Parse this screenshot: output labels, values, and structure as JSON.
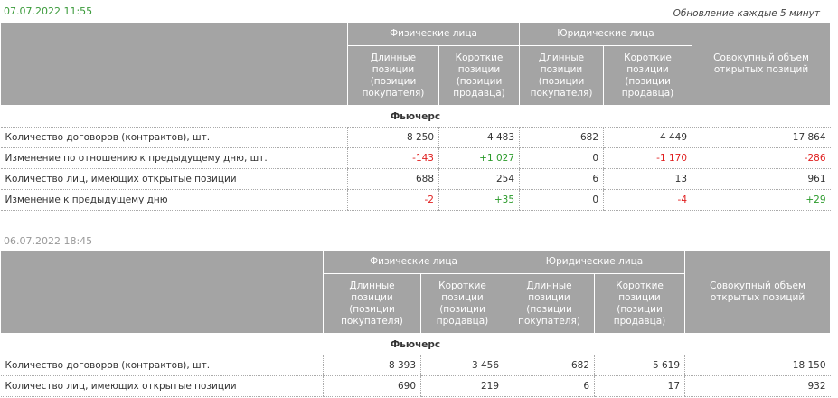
{
  "header": {
    "update_note": "Обновление каждые 5 минут"
  },
  "tables": [
    {
      "timestamp": "07.07.2022 11:55",
      "group_headers": [
        "Физические лица",
        "Юридические лица"
      ],
      "sub_headers": [
        "Длинные позиции (позиции покупателя)",
        "Короткие позиции (позиции продавца)",
        "Длинные позиции (позиции покупателя)",
        "Короткие позиции (позиции продавца)"
      ],
      "total_header": "Совокупный объем открытых позиций",
      "section": "Фьючерс",
      "rows": [
        {
          "label": "Количество договоров (контрактов), шт.",
          "values": [
            "8 250",
            "4 483",
            "682",
            "4 449",
            "17 864"
          ]
        },
        {
          "label": "Изменение по отношению к предыдущему дню, шт.",
          "values": [
            "-143",
            "+1 027",
            "0",
            "-1 170",
            "-286"
          ]
        },
        {
          "label": "Количество лиц, имеющих открытые позиции",
          "values": [
            "688",
            "254",
            "6",
            "13",
            "961"
          ]
        },
        {
          "label": "Изменение к предыдущему дню",
          "values": [
            "-2",
            "+35",
            "0",
            "-4",
            "+29"
          ]
        }
      ]
    },
    {
      "timestamp": "06.07.2022 18:45",
      "group_headers": [
        "Физические лица",
        "Юридические лица"
      ],
      "sub_headers": [
        "Длинные позиции (позиции покупателя)",
        "Короткие позиции (позиции продавца)",
        "Длинные позиции (позиции покупателя)",
        "Короткие позиции (позиции продавца)"
      ],
      "total_header": "Совокупный объем открытых позиций",
      "section": "Фьючерс",
      "rows": [
        {
          "label": "Количество договоров (контрактов), шт.",
          "values": [
            "8 393",
            "3 456",
            "682",
            "5 619",
            "18 150"
          ]
        },
        {
          "label": "Количество лиц, имеющих открытые позиции",
          "values": [
            "690",
            "219",
            "6",
            "17",
            "932"
          ]
        }
      ]
    }
  ]
}
